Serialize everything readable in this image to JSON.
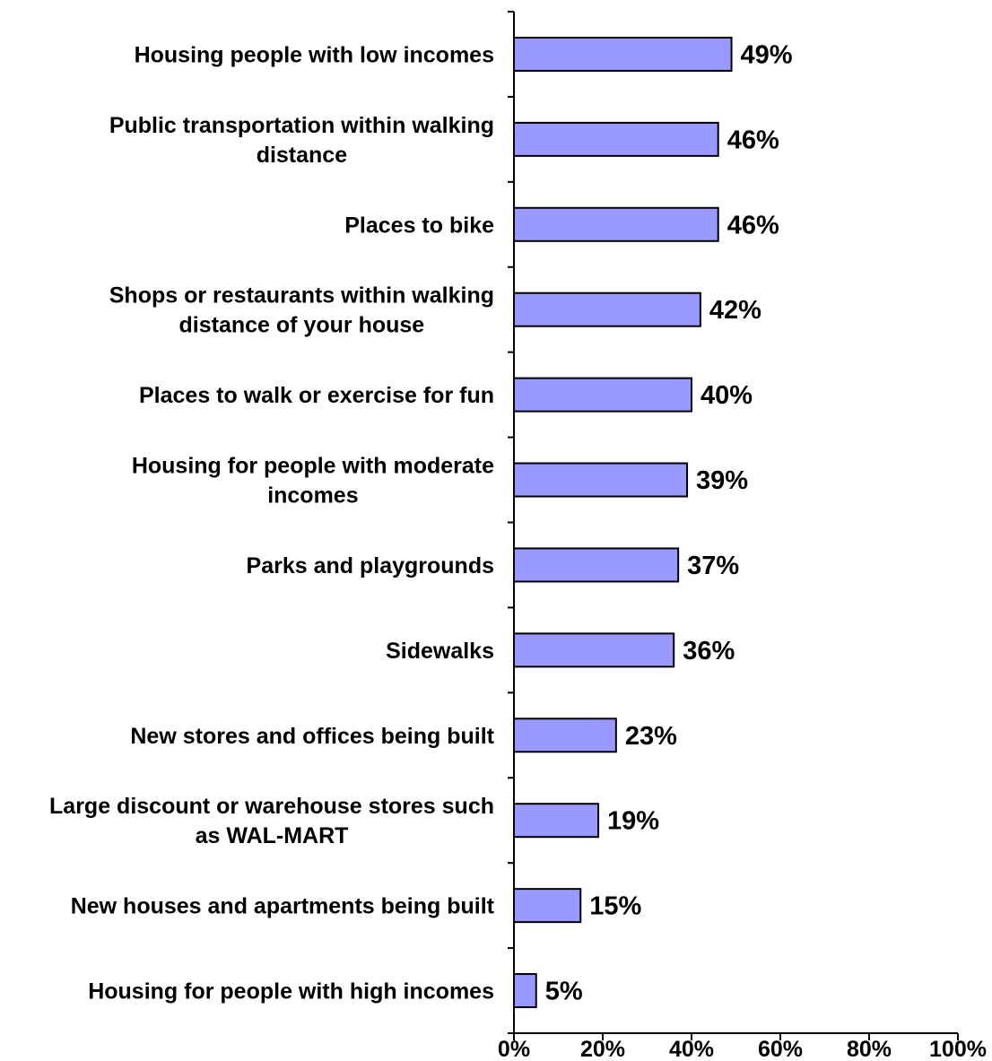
{
  "chart_data": {
    "type": "bar",
    "orientation": "horizontal",
    "title": "",
    "xlabel": "",
    "ylabel": "",
    "xlim": [
      0,
      100
    ],
    "grid": false,
    "legend": "none",
    "bar_color": "#9999ff",
    "bar_border_color": "#000000",
    "categories": [
      [
        "Housing people with low incomes"
      ],
      [
        "Public transportation within walking",
        "distance"
      ],
      [
        "Places to bike"
      ],
      [
        "Shops or restaurants within walking",
        "distance of your house"
      ],
      [
        "Places to walk or exercise for fun"
      ],
      [
        "Housing for people with moderate",
        "incomes"
      ],
      [
        "Parks and playgrounds"
      ],
      [
        "Sidewalks"
      ],
      [
        "New stores and offices being built"
      ],
      [
        "Large discount or warehouse stores such",
        "as WAL-MART"
      ],
      [
        "New houses and apartments being built"
      ],
      [
        "Housing for people with high incomes"
      ]
    ],
    "values": [
      49,
      46,
      46,
      42,
      40,
      39,
      37,
      36,
      23,
      19,
      15,
      5
    ],
    "value_labels": [
      "49%",
      "46%",
      "46%",
      "42%",
      "40%",
      "39%",
      "37%",
      "36%",
      "23%",
      "19%",
      "15%",
      "5%"
    ],
    "x_ticks": [
      0,
      20,
      40,
      60,
      80,
      100
    ],
    "x_tick_labels": [
      "0%",
      "20%",
      "40%",
      "60%",
      "80%",
      "100%"
    ]
  }
}
